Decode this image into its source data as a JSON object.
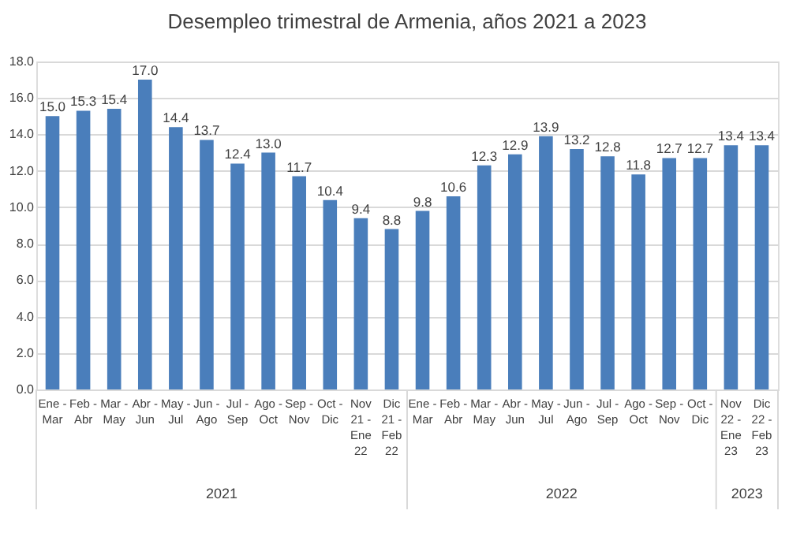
{
  "chart_data": {
    "type": "bar",
    "title": "Desempleo trimestral de Armenia, años 2021 a 2023",
    "categories": [
      "Ene - Mar",
      "Feb - Abr",
      "Mar - May",
      "Abr - Jun",
      "May - Jul",
      "Jun - Ago",
      "Jul - Sep",
      "Ago - Oct",
      "Sep - Nov",
      "Oct - Dic",
      "Nov 21 - Ene 22",
      "Dic 21 - Feb 22",
      "Ene - Mar",
      "Feb - Abr",
      "Mar - May",
      "Abr - Jun",
      "May - Jul",
      "Jun - Ago",
      "Jul - Sep",
      "Ago - Oct",
      "Sep - Nov",
      "Oct - Dic",
      "Nov 22 - Ene 23",
      "Dic 22 - Feb 23"
    ],
    "values": [
      15.0,
      15.3,
      15.4,
      17.0,
      14.4,
      13.7,
      12.4,
      13.0,
      11.7,
      10.4,
      9.4,
      8.8,
      9.8,
      10.6,
      12.3,
      12.9,
      13.9,
      13.2,
      12.8,
      11.8,
      12.7,
      12.7,
      13.4,
      13.4
    ],
    "color": "#4a7ebb",
    "ylim": [
      0,
      18
    ],
    "yticks": [
      {
        "value": 0,
        "label": "0.0"
      },
      {
        "value": 2,
        "label": "2.0"
      },
      {
        "value": 4,
        "label": "4.0"
      },
      {
        "value": 6,
        "label": "6.0"
      },
      {
        "value": 8,
        "label": "8.0"
      },
      {
        "value": 10,
        "label": "10.0"
      },
      {
        "value": 12,
        "label": "12.0"
      },
      {
        "value": 14,
        "label": "14.0"
      },
      {
        "value": 16,
        "label": "16.0"
      },
      {
        "value": 18,
        "label": "18.0"
      }
    ],
    "grid": "y",
    "value_labels": [
      "15.0",
      "15.3",
      "15.4",
      "17.0",
      "14.4",
      "13.7",
      "12.4",
      "13.0",
      "11.7",
      "10.4",
      "9.4",
      "8.8",
      "9.8",
      "10.6",
      "12.3",
      "12.9",
      "13.9",
      "13.2",
      "12.8",
      "11.8",
      "12.7",
      "12.7",
      "13.4",
      "13.4"
    ],
    "annotations": [
      "2021",
      "2022",
      "2023"
    ]
  }
}
